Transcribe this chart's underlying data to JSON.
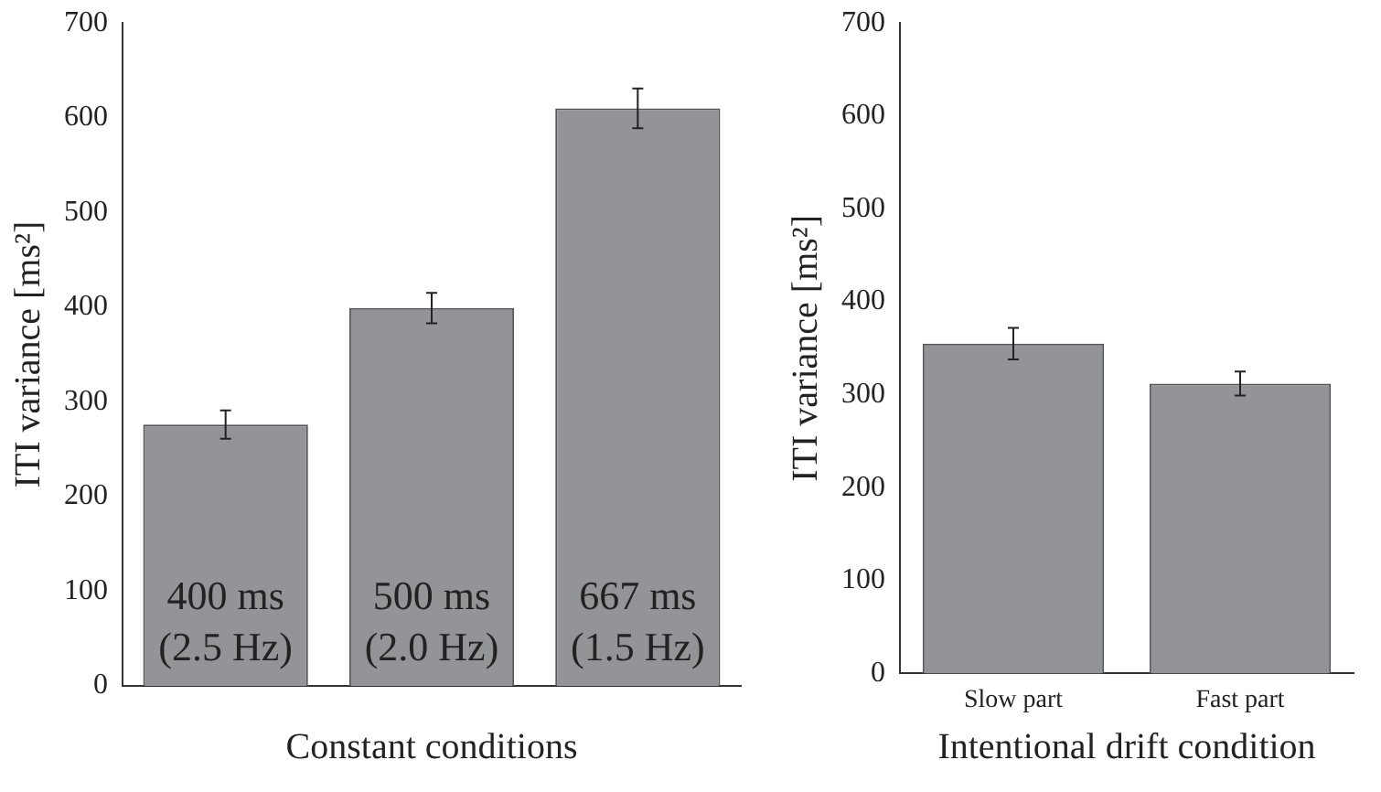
{
  "chart_data": [
    {
      "type": "bar",
      "categories": [
        "400 ms\n(2.5 Hz)",
        "500 ms\n(2.0 Hz)",
        "667 ms\n(1.5 Hz)"
      ],
      "values": [
        276,
        399,
        610
      ],
      "errors": [
        15,
        16,
        21
      ],
      "color": "#939498",
      "xlabel": "Constant conditions",
      "ylabel": "ITI variance [ms²]",
      "ylim": [
        0,
        700
      ],
      "yticks": [
        0,
        100,
        200,
        300,
        400,
        500,
        600,
        700
      ],
      "grid": false,
      "legend": false
    },
    {
      "type": "bar",
      "categories": [
        "Slow part",
        "Fast part"
      ],
      "values": [
        355,
        312
      ],
      "errors": [
        17,
        13
      ],
      "color": "#939498",
      "xlabel": "Intentional drift condition",
      "ylabel": "ITI variance [ms²]",
      "ylim": [
        0,
        700
      ],
      "yticks": [
        0,
        100,
        200,
        300,
        400,
        500,
        600,
        700
      ],
      "grid": false,
      "legend": false
    }
  ]
}
